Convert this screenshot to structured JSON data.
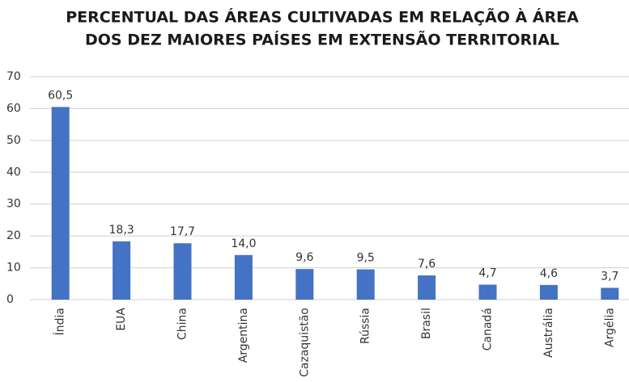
{
  "chart_data": {
    "type": "bar",
    "title": [
      "PERCENTUAL DAS ÁREAS CULTIVADAS EM RELAÇÃO À ÁREA",
      "DOS DEZ MAIORES PAÍSES EM EXTENSÃO TERRITORIAL"
    ],
    "categories": [
      "Índia",
      "EUA",
      "China",
      "Argentina",
      "Cazaquistão",
      "Rússia",
      "Brasil",
      "Canadá",
      "Austrália",
      "Argélia"
    ],
    "values": [
      60.5,
      18.3,
      17.7,
      14.0,
      9.6,
      9.5,
      7.6,
      4.7,
      4.6,
      3.7
    ],
    "value_labels": [
      "60,5",
      "18,3",
      "17,7",
      "14,0",
      "9,6",
      "9,5",
      "7,6",
      "4,7",
      "4,6",
      "3,7"
    ],
    "color": "#4472c4",
    "ylim": [
      0,
      70
    ],
    "yticks": [
      0,
      10,
      20,
      30,
      40,
      50,
      60,
      70
    ],
    "grid": true
  }
}
